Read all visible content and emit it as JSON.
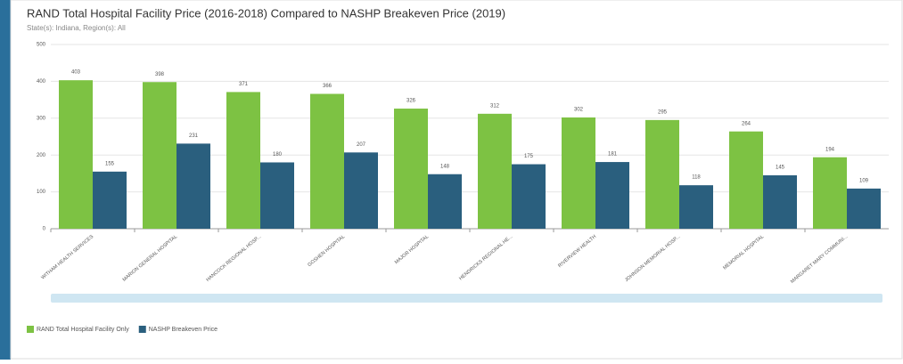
{
  "chart_data": {
    "type": "bar",
    "title": "RAND Total Hospital Facility Price (2016-2018) Compared to NASHP Breakeven Price (2019)",
    "subtitle": "State(s): Indiana, Region(s): All",
    "categories": [
      "WITHAM HEALTH SERVICES",
      "MARION GENERAL HOSPITAL",
      "HANCOCK REGIONAL HOSP...",
      "GOSHEN HOSPITAL",
      "MAJOR HOSPITAL",
      "HENDRICKS REGIONAL HE...",
      "RIVERVIEW HEALTH",
      "JOHNSON MEMORIAL HOSP...",
      "MEMORIAL HOSPITAL",
      "MARGARET MARY COMMUNI..."
    ],
    "series": [
      {
        "name": "RAND Total Hospital Facility Only",
        "color": "#7dc243",
        "values": [
          403,
          398,
          371,
          366,
          326,
          312,
          302,
          295,
          264,
          194
        ]
      },
      {
        "name": "NASHP Breakeven Price",
        "color": "#2a5f7e",
        "values": [
          155,
          231,
          180,
          207,
          148,
          175,
          181,
          118,
          145,
          109
        ]
      }
    ],
    "ylim": [
      0,
      500
    ],
    "yticks": [
      0,
      100,
      200,
      300,
      400,
      500
    ],
    "grid": true
  }
}
